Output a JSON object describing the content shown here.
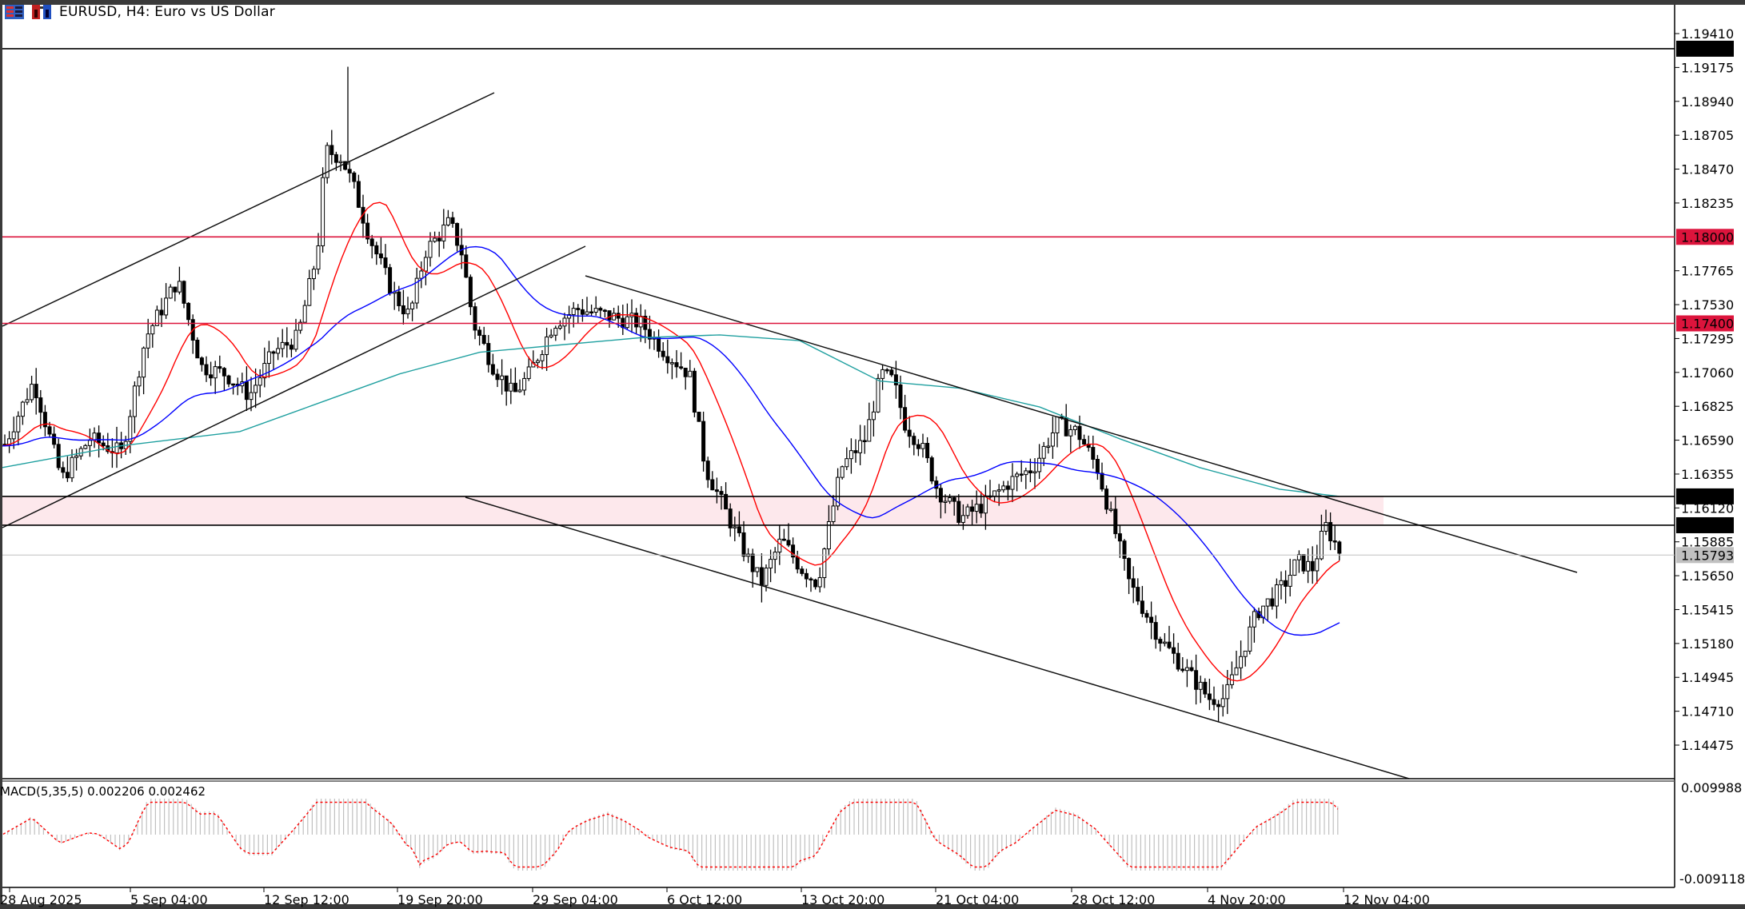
{
  "window": {
    "title": "EURUSD, H4:  Euro vs US Dollar",
    "icons": [
      "chart-grid-icon",
      "trade-panel-icon"
    ]
  },
  "chart_data": {
    "type": "candlestick",
    "symbol": "EURUSD",
    "timeframe": "H4",
    "title": "EURUSD, H4:  Euro vs US Dollar",
    "price_axis": {
      "ticks": [
        "1.19410",
        "1.19175",
        "1.18940",
        "1.18705",
        "1.18470",
        "1.18235",
        "1.17765",
        "1.17530",
        "1.17295",
        "1.17060",
        "1.16825",
        "1.16590",
        "1.16355",
        "1.16120",
        "1.15885",
        "1.15650",
        "1.15415",
        "1.15180",
        "1.14945",
        "1.14710",
        "1.14475"
      ],
      "range": [
        1.1435,
        1.1965
      ]
    },
    "time_axis": {
      "ticks": [
        "28 Aug 2025",
        "5 Sep 04:00",
        "12 Sep 12:00",
        "19 Sep 20:00",
        "29 Sep 04:00",
        "6 Oct 12:00",
        "13 Oct 20:00",
        "21 Oct 04:00",
        "28 Oct 12:00",
        "4 Nov 20:00",
        "12 Nov 04:00"
      ]
    },
    "horizontal_levels": [
      {
        "price": "1.19305",
        "color": "#000000",
        "label_bg": "#000000",
        "label_fg": "#ffffff"
      },
      {
        "price": "1.18000",
        "color": "#dc143c",
        "label_bg": "#dc143c",
        "label_fg": "#ffffff"
      },
      {
        "price": "1.17400",
        "color": "#dc143c",
        "label_bg": "#dc143c",
        "label_fg": "#ffffff"
      },
      {
        "price": "1.16200",
        "color": "#000000",
        "label_bg": "#000000",
        "label_fg": "#ffffff"
      },
      {
        "price": "1.16000",
        "color": "#000000",
        "label_bg": "#000000",
        "label_fg": "#ffffff"
      },
      {
        "price": "1.15793",
        "color": "#c0c0c0",
        "label_bg": "#c0c0c0",
        "label_fg": "#ffffff",
        "role": "current-bid"
      }
    ],
    "shaded_zone": {
      "from": "1.16000",
      "to": "1.16200",
      "color": "#fde8ec"
    },
    "trendlines": [
      {
        "name": "ascending-channel-upper",
        "from": [
          "start",
          1.174
        ],
        "to": [
          "~24 Sep",
          1.1955
        ]
      },
      {
        "name": "ascending-channel-lower",
        "from": [
          "start",
          1.1585
        ],
        "to": [
          "~27 Sep",
          1.1785
        ]
      },
      {
        "name": "descending-channel-upper",
        "from": [
          "~30 Sep",
          1.1777
        ],
        "to": [
          "~17 Nov",
          1.1562
        ]
      },
      {
        "name": "descending-channel-lower",
        "from": [
          "~25 Sep",
          1.1612
        ],
        "to": [
          "~10 Nov",
          1.1435
        ]
      }
    ],
    "moving_averages": [
      {
        "name": "MA-fast",
        "color": "#ff0000"
      },
      {
        "name": "MA-mid",
        "color": "#0000ff"
      },
      {
        "name": "MA-slow",
        "color": "#20a0a0"
      }
    ],
    "key_points": {
      "high": {
        "date": "~16 Sep",
        "price": 1.1918
      },
      "low": {
        "date": "~5 Nov",
        "price": 1.1468
      },
      "last": {
        "date": "12 Nov",
        "price": 1.15793
      }
    },
    "macd": {
      "label": "MACD(5,35,5) 0.002206 0.002462",
      "params": [
        5,
        35,
        5
      ],
      "main": 0.002206,
      "signal": 0.002462,
      "axis_ticks": [
        "0.009988",
        "-0.009118"
      ],
      "histogram_color": "#c0c0c0",
      "signal_color": "#ff0000"
    }
  }
}
